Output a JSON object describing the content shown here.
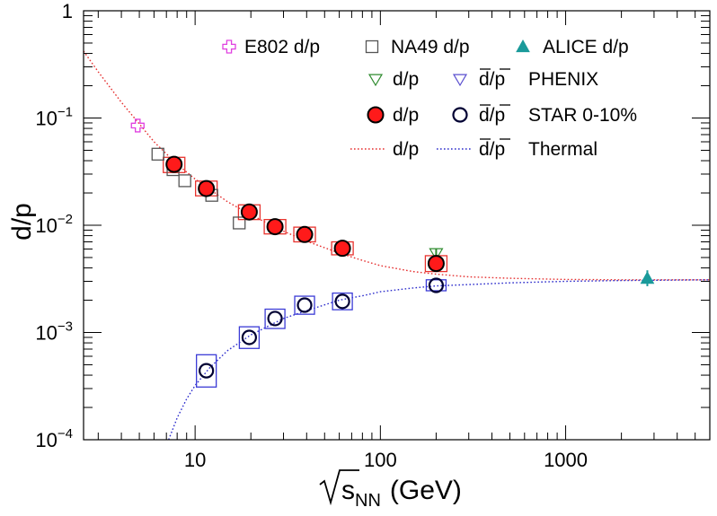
{
  "chart_data": {
    "type": "scatter",
    "x_scale": "log",
    "y_scale": "log",
    "xlim": [
      2.5,
      6000
    ],
    "ylim": [
      0.0001,
      1
    ],
    "xlabel": "(GeV)",
    "xlabel_sqrt_base": "s",
    "xlabel_subscript": "NN",
    "ylabel": "d/p",
    "x_ticks": [
      {
        "value": 10,
        "label": "10"
      },
      {
        "value": 100,
        "label": "100"
      },
      {
        "value": 1000,
        "label": "1000"
      }
    ],
    "y_ticks": [
      {
        "value": 1,
        "label": "1",
        "base": "",
        "exp": ""
      },
      {
        "value": 0.1,
        "label": "",
        "base": "10",
        "exp": "−1"
      },
      {
        "value": 0.01,
        "label": "",
        "base": "10",
        "exp": "−2"
      },
      {
        "value": 0.001,
        "label": "",
        "base": "10",
        "exp": "−3"
      },
      {
        "value": 0.0001,
        "label": "",
        "base": "10",
        "exp": "−4"
      }
    ],
    "series": [
      {
        "name": "E802 d/p",
        "marker": "open-cross",
        "color": "#e040e0",
        "points": [
          {
            "x": 4.9,
            "y": 0.085
          }
        ]
      },
      {
        "name": "NA49 d/p",
        "marker": "open-square",
        "color": "#555555",
        "points": [
          {
            "x": 6.3,
            "y": 0.046
          },
          {
            "x": 7.6,
            "y": 0.033
          },
          {
            "x": 8.8,
            "y": 0.026
          },
          {
            "x": 12.3,
            "y": 0.019
          },
          {
            "x": 17.3,
            "y": 0.0105
          }
        ]
      },
      {
        "name": "ALICE d/p",
        "marker": "filled-triangle",
        "color": "#1a9a9a",
        "points": [
          {
            "x": 2760,
            "y": 0.0032,
            "err_low": 0.0027,
            "err_high": 0.0038
          }
        ]
      },
      {
        "name": "d/p",
        "group": "PHENIX",
        "marker": "open-triangle-down",
        "color": "#2e8b2e",
        "points": [
          {
            "x": 200,
            "y": 0.0055,
            "err_low": 0.005,
            "err_high": 0.006
          }
        ]
      },
      {
        "name": "d̄/p̄",
        "group": "PHENIX",
        "marker": "open-triangle-down",
        "color": "#5a4fcf",
        "points": []
      },
      {
        "name": "d/p",
        "group": "STAR 0-10%",
        "marker": "filled-circle",
        "color": "#ff1a1a",
        "syst_color": "#e8332e",
        "points": [
          {
            "x": 7.7,
            "y": 0.037,
            "sys_low": 0.031,
            "sys_high": 0.043
          },
          {
            "x": 11.5,
            "y": 0.022,
            "sys_low": 0.0188,
            "sys_high": 0.0258
          },
          {
            "x": 19.6,
            "y": 0.0133,
            "sys_low": 0.0113,
            "sys_high": 0.0155
          },
          {
            "x": 27,
            "y": 0.0097,
            "sys_low": 0.0083,
            "sys_high": 0.0113
          },
          {
            "x": 39,
            "y": 0.0082,
            "sys_low": 0.007,
            "sys_high": 0.0096
          },
          {
            "x": 62.4,
            "y": 0.0061,
            "sys_low": 0.0053,
            "sys_high": 0.007
          },
          {
            "x": 200,
            "y": 0.0044,
            "sys_low": 0.0037,
            "sys_high": 0.0052
          }
        ]
      },
      {
        "name": "d̄/p̄",
        "group": "STAR 0-10%",
        "marker": "open-circle",
        "color": "#000033",
        "syst_color": "#3b3bd6",
        "points": [
          {
            "x": 11.5,
            "y": 0.00044,
            "sys_low": 0.00031,
            "sys_high": 0.00062
          },
          {
            "x": 19.6,
            "y": 0.0009,
            "sys_low": 0.00071,
            "sys_high": 0.00113
          },
          {
            "x": 27,
            "y": 0.00135,
            "sys_low": 0.00109,
            "sys_high": 0.00165
          },
          {
            "x": 39,
            "y": 0.0018,
            "sys_low": 0.00148,
            "sys_high": 0.00218
          },
          {
            "x": 62.4,
            "y": 0.00195,
            "sys_low": 0.00163,
            "sys_high": 0.00233
          },
          {
            "x": 200,
            "y": 0.00275,
            "sys_low": 0.00245,
            "sys_high": 0.0031
          }
        ]
      },
      {
        "name": "d/p",
        "group": "Thermal",
        "type": "line",
        "style": "dotted",
        "color": "#e53030",
        "points": [
          {
            "x": 2.5,
            "y": 0.42
          },
          {
            "x": 3,
            "y": 0.27
          },
          {
            "x": 4,
            "y": 0.14
          },
          {
            "x": 5,
            "y": 0.088
          },
          {
            "x": 6,
            "y": 0.06
          },
          {
            "x": 8,
            "y": 0.037
          },
          {
            "x": 10,
            "y": 0.027
          },
          {
            "x": 15,
            "y": 0.0165
          },
          {
            "x": 20,
            "y": 0.0125
          },
          {
            "x": 30,
            "y": 0.0088
          },
          {
            "x": 40,
            "y": 0.0071
          },
          {
            "x": 60,
            "y": 0.0055
          },
          {
            "x": 80,
            "y": 0.0047
          },
          {
            "x": 100,
            "y": 0.0042
          },
          {
            "x": 150,
            "y": 0.0037
          },
          {
            "x": 200,
            "y": 0.0035
          },
          {
            "x": 300,
            "y": 0.0033
          },
          {
            "x": 500,
            "y": 0.0032
          },
          {
            "x": 1000,
            "y": 0.00312
          },
          {
            "x": 2000,
            "y": 0.0031
          },
          {
            "x": 6000,
            "y": 0.0031
          }
        ]
      },
      {
        "name": "d̄/p̄",
        "group": "Thermal",
        "type": "line",
        "style": "dotted",
        "color": "#2d2dcc",
        "points": [
          {
            "x": 7.2,
            "y": 0.0001
          },
          {
            "x": 8,
            "y": 0.00016
          },
          {
            "x": 9,
            "y": 0.00024
          },
          {
            "x": 10,
            "y": 0.00032
          },
          {
            "x": 12,
            "y": 0.00047
          },
          {
            "x": 15,
            "y": 0.00068
          },
          {
            "x": 20,
            "y": 0.00095
          },
          {
            "x": 30,
            "y": 0.00135
          },
          {
            "x": 40,
            "y": 0.0016
          },
          {
            "x": 60,
            "y": 0.002
          },
          {
            "x": 80,
            "y": 0.0022
          },
          {
            "x": 100,
            "y": 0.0024
          },
          {
            "x": 150,
            "y": 0.0026
          },
          {
            "x": 200,
            "y": 0.00272
          },
          {
            "x": 300,
            "y": 0.0028
          },
          {
            "x": 500,
            "y": 0.0029
          },
          {
            "x": 1000,
            "y": 0.003
          },
          {
            "x": 2000,
            "y": 0.00305
          },
          {
            "x": 6000,
            "y": 0.0031
          }
        ]
      }
    ],
    "legend": {
      "placement": "top-right",
      "row1": [
        {
          "label": "E802 d/p",
          "marker": "open-cross",
          "color": "#e040e0"
        },
        {
          "label": "NA49 d/p",
          "marker": "open-square",
          "color": "#555555"
        },
        {
          "label": "ALICE d/p",
          "marker": "filled-triangle",
          "color": "#1a9a9a"
        }
      ],
      "rows": [
        {
          "group": "PHENIX",
          "a_label": "d/p",
          "a_marker": "open-triangle-down",
          "a_color": "#2e8b2e",
          "b_label": "d/p",
          "b_bar": true,
          "b_marker": "open-triangle-down",
          "b_color": "#5a4fcf"
        },
        {
          "group": "STAR 0-10%",
          "a_label": "d/p",
          "a_marker": "filled-circle",
          "a_color": "#ff1a1a",
          "b_label": "d/p",
          "b_bar": true,
          "b_marker": "open-circle",
          "b_color": "#000033"
        },
        {
          "group": "Thermal",
          "a_label": "d/p",
          "a_marker": "dotted-line",
          "a_color": "#e53030",
          "b_label": "d/p",
          "b_bar": true,
          "b_marker": "dotted-line",
          "b_color": "#2d2dcc"
        }
      ]
    }
  }
}
